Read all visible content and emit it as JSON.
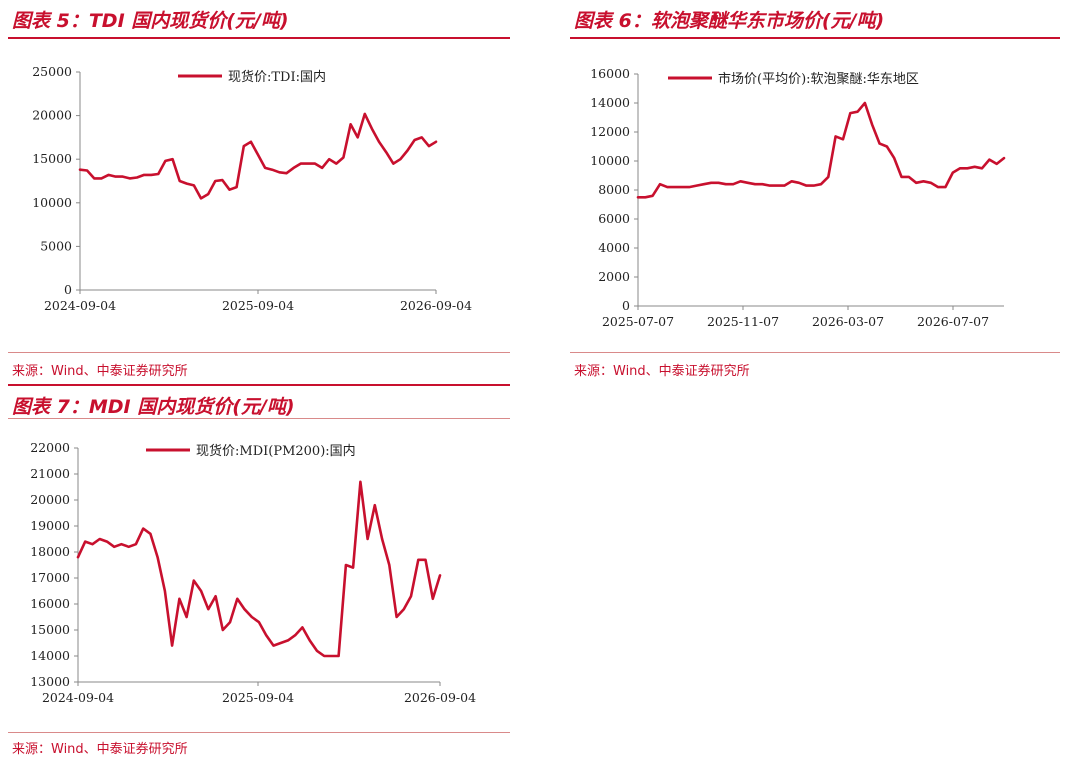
{
  "panels": {
    "p5": {
      "title": "图表 5：TDI 国内现货价(元/吨)",
      "source": "来源：Wind、中泰证券研究所"
    },
    "p6": {
      "title": "图表 6：软泡聚醚华东市场价(元/吨)",
      "source": "来源：Wind、中泰证券研究所"
    },
    "p7": {
      "title": "图表 7：MDI 国内现货价(元/吨)",
      "source": "来源：Wind、中泰证券研究所"
    }
  },
  "colors": {
    "accent": "#c8102e",
    "series": "#c8102e",
    "axis": "#888888"
  },
  "chart_data": [
    {
      "id": "tdi",
      "type": "line",
      "title": "图表 5：TDI 国内现货价(元/吨)",
      "legend_position": "top-center",
      "grid": false,
      "x_tick_labels": [
        "2024-09-04",
        "2025-09-04",
        "2026-09-04"
      ],
      "y_ticks": [
        "0",
        "5000",
        "10000",
        "15000",
        "20000",
        "25000"
      ],
      "ylim": [
        0,
        25000
      ],
      "series": [
        {
          "name": "现货价:TDI:国内",
          "x": [
            0,
            0.02,
            0.04,
            0.06,
            0.08,
            0.1,
            0.12,
            0.14,
            0.16,
            0.18,
            0.2,
            0.22,
            0.24,
            0.26,
            0.28,
            0.3,
            0.32,
            0.34,
            0.36,
            0.38,
            0.4,
            0.42,
            0.44,
            0.46,
            0.48,
            0.5,
            0.52,
            0.54,
            0.56,
            0.58,
            0.6,
            0.62,
            0.64,
            0.66,
            0.68,
            0.7,
            0.72,
            0.74,
            0.76,
            0.78,
            0.8,
            0.82,
            0.84,
            0.86,
            0.88,
            0.9,
            0.92,
            0.94,
            0.96,
            0.98,
            1.0
          ],
          "values": [
            13800,
            13700,
            12800,
            12800,
            13200,
            13000,
            13000,
            12800,
            12900,
            13200,
            13200,
            13300,
            14800,
            15000,
            12500,
            12200,
            12000,
            10500,
            11000,
            12500,
            12600,
            11500,
            11800,
            16500,
            17000,
            15500,
            14000,
            13800,
            13500,
            13400,
            14000,
            14500,
            14500,
            14500,
            14000,
            15000,
            14500,
            15200,
            19000,
            17500,
            20200,
            18500,
            17000,
            15800,
            14500,
            15000,
            16000,
            17200,
            17500,
            16500,
            17000
          ]
        }
      ]
    },
    {
      "id": "polyether",
      "type": "line",
      "title": "图表 6：软泡聚醚华东市场价(元/吨)",
      "legend_position": "top-center",
      "grid": false,
      "x_tick_labels": [
        "2025-07-07",
        "2025-11-07",
        "2026-03-07",
        "2026-07-07"
      ],
      "y_ticks": [
        "0",
        "2000",
        "4000",
        "6000",
        "8000",
        "10000",
        "12000",
        "14000",
        "16000"
      ],
      "ylim": [
        0,
        16000
      ],
      "series": [
        {
          "name": "市场价(平均价):软泡聚醚:华东地区",
          "x": [
            0,
            0.02,
            0.04,
            0.06,
            0.08,
            0.1,
            0.12,
            0.14,
            0.16,
            0.18,
            0.2,
            0.22,
            0.24,
            0.26,
            0.28,
            0.3,
            0.32,
            0.34,
            0.36,
            0.38,
            0.4,
            0.42,
            0.44,
            0.46,
            0.48,
            0.5,
            0.52,
            0.54,
            0.56,
            0.58,
            0.6,
            0.62,
            0.64,
            0.66,
            0.68,
            0.7,
            0.72,
            0.74,
            0.76,
            0.78,
            0.8,
            0.82,
            0.84,
            0.86,
            0.88,
            0.9,
            0.92,
            0.94,
            0.96,
            0.98,
            1.0
          ],
          "values": [
            7500,
            7500,
            7600,
            8400,
            8200,
            8200,
            8200,
            8200,
            8300,
            8400,
            8500,
            8500,
            8400,
            8400,
            8600,
            8500,
            8400,
            8400,
            8300,
            8300,
            8300,
            8600,
            8500,
            8300,
            8300,
            8400,
            8900,
            11700,
            11500,
            13300,
            13400,
            14000,
            12500,
            11200,
            11000,
            10200,
            8900,
            8900,
            8500,
            8600,
            8500,
            8200,
            8200,
            9200,
            9500,
            9500,
            9600,
            9500,
            10100,
            9800,
            10200
          ]
        }
      ]
    },
    {
      "id": "mdi",
      "type": "line",
      "title": "图表 7：MDI 国内现货价(元/吨)",
      "legend_position": "top-center",
      "grid": false,
      "x_tick_labels": [
        "2024-09-04",
        "2025-09-04",
        "2026-09-04"
      ],
      "y_ticks": [
        "13000",
        "14000",
        "15000",
        "16000",
        "17000",
        "18000",
        "19000",
        "20000",
        "21000",
        "22000"
      ],
      "ylim": [
        13000,
        22000
      ],
      "series": [
        {
          "name": "现货价:MDI(PM200):国内",
          "x": [
            0,
            0.02,
            0.04,
            0.06,
            0.08,
            0.1,
            0.12,
            0.14,
            0.16,
            0.18,
            0.2,
            0.22,
            0.24,
            0.26,
            0.28,
            0.3,
            0.32,
            0.34,
            0.36,
            0.38,
            0.4,
            0.42,
            0.44,
            0.46,
            0.48,
            0.5,
            0.52,
            0.54,
            0.56,
            0.58,
            0.6,
            0.62,
            0.64,
            0.66,
            0.68,
            0.7,
            0.72,
            0.74,
            0.76,
            0.78,
            0.8,
            0.82,
            0.84,
            0.86,
            0.88,
            0.9,
            0.92,
            0.94,
            0.96,
            0.98,
            1.0
          ],
          "values": [
            17800,
            18400,
            18300,
            18500,
            18400,
            18200,
            18300,
            18200,
            18300,
            18900,
            18700,
            17800,
            16500,
            14400,
            16200,
            15500,
            16900,
            16500,
            15800,
            16300,
            15000,
            15300,
            16200,
            15800,
            15500,
            15300,
            14800,
            14400,
            14500,
            14600,
            14800,
            15100,
            14600,
            14200,
            14000,
            14000,
            14000,
            17500,
            17400,
            20700,
            18500,
            19800,
            18500,
            17500,
            15500,
            15800,
            16300,
            17700,
            17700,
            16200,
            17100
          ]
        }
      ]
    }
  ]
}
